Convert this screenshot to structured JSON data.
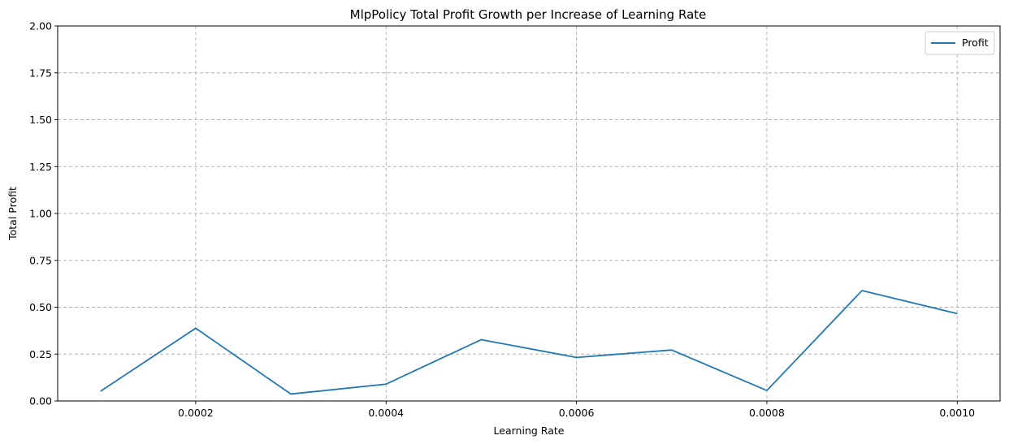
{
  "chart_data": {
    "type": "line",
    "title": "MlpPolicy Total Profit Growth per Increase of Learning Rate",
    "xlabel": "Learning Rate",
    "ylabel": "Total Profit",
    "xlim": [
      5.5e-05,
      0.001045
    ],
    "ylim": [
      0,
      2.0
    ],
    "xticks": [
      0.0002,
      0.0004,
      0.0006,
      0.0008,
      0.001
    ],
    "xtick_labels": [
      "0.0002",
      "0.0004",
      "0.0006",
      "0.0008",
      "0.0010"
    ],
    "yticks": [
      0,
      0.25,
      0.5,
      0.75,
      1.0,
      1.25,
      1.5,
      1.75,
      2.0
    ],
    "ytick_labels": [
      "0.00",
      "0.25",
      "0.50",
      "0.75",
      "1.00",
      "1.25",
      "1.50",
      "1.75",
      "2.00"
    ],
    "grid": true,
    "legend_position": "top-right",
    "series": [
      {
        "name": "Profit",
        "color": "#1f77b4",
        "x": [
          0.0001,
          0.0002,
          0.0003,
          0.0004,
          0.0005,
          0.0006,
          0.0007,
          0.0008,
          0.0009,
          0.001
        ],
        "y": [
          0.052,
          0.388,
          0.037,
          0.09,
          0.327,
          0.232,
          0.272,
          0.056,
          0.589,
          0.466
        ]
      }
    ]
  }
}
